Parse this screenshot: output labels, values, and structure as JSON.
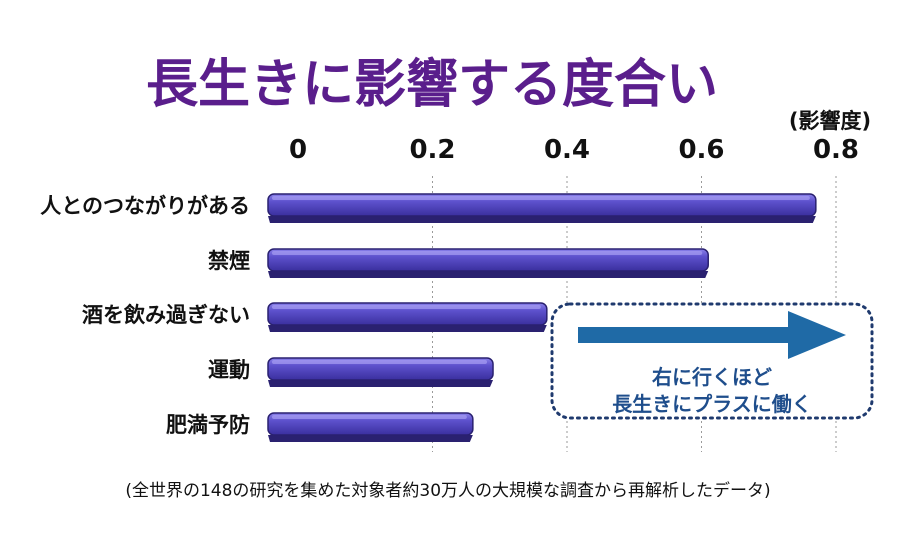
{
  "chart_data": {
    "type": "bar",
    "orientation": "horizontal",
    "title": "長生きに影響する度合い",
    "axis_unit_label": "(影響度)",
    "x_ticks": [
      "0",
      "0.2",
      "0.4",
      "0.6",
      "0.8"
    ],
    "xlim": [
      0,
      0.8
    ],
    "grid": true,
    "categories": [
      "人とのつながりがある",
      "禁煙",
      "酒を飲み過ぎない",
      "運動",
      "肥満予防"
    ],
    "values": [
      0.77,
      0.61,
      0.37,
      0.29,
      0.26
    ],
    "bar_color": "#5b4fc9",
    "annotation": {
      "line1": "右に行くほど",
      "line2": "長生きにプラスに働く"
    },
    "source_note": "(全世界の148の研究を集めた対象者約30万人の大規模な調査から再解析したデータ)",
    "colors": {
      "title": "#5a1e8c",
      "bar_top": "#7a6ee0",
      "bar_face": "#4b3fb8",
      "bar_dark": "#2a2170",
      "arrow": "#1f6aa6",
      "annotation_text": "#1f4e8c",
      "annotation_border": "#1f3a6e"
    }
  }
}
